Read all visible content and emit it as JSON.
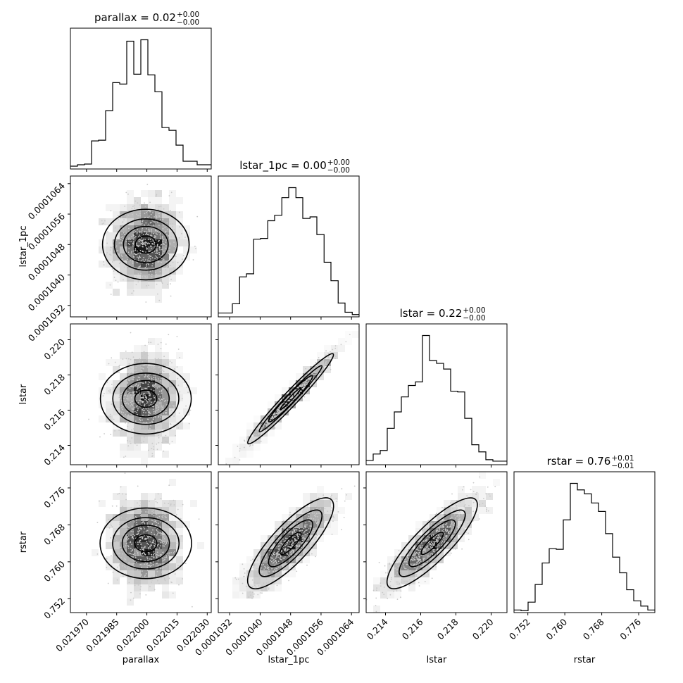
{
  "chart_data": {
    "type": "corner",
    "parameters": [
      {
        "key": "parallax",
        "label": "parallax",
        "range": [
          0.021962,
          0.022032
        ],
        "ticks": [
          "0.021970",
          "0.021985",
          "0.022000",
          "0.022015",
          "0.022030"
        ],
        "tick_values": [
          0.02197,
          0.021985,
          0.022,
          0.022015,
          0.02203
        ],
        "title_main": "parallax = 0.02",
        "title_sup": "+0.00",
        "title_sub": "−0.00",
        "hist_edges": [
          0.021962,
          0.0219655,
          0.021969,
          0.0219725,
          0.021976,
          0.0219795,
          0.021983,
          0.0219865,
          0.02199,
          0.0219935,
          0.021997,
          0.0220005,
          0.022004,
          0.0220075,
          0.022011,
          0.0220145,
          0.022018,
          0.0220215,
          0.022025,
          0.0220285,
          0.022032
        ],
        "hist_counts": [
          4,
          6,
          7,
          40,
          41,
          83,
          123,
          121,
          182,
          135,
          184,
          134,
          110,
          59,
          55,
          34,
          11,
          11,
          6,
          6
        ]
      },
      {
        "key": "lstar_1pc",
        "label": "lstar_1pc",
        "range": [
          0.0001029,
          0.0001066
        ],
        "ticks": [
          "0.0001032",
          "0.0001040",
          "0.0001048",
          "0.0001056",
          "0.0001064"
        ],
        "tick_values": [
          0.0001032,
          0.000104,
          0.0001048,
          0.0001056,
          0.0001064
        ],
        "title_main": "lstar_1pc = 0.00",
        "title_sup": "+0.00",
        "title_sub": "−0.00",
        "hist_edges": [
          0.0001029,
          0.00010309,
          0.00010327,
          0.00010346,
          0.00010364,
          0.00010383,
          0.00010401,
          0.0001042,
          0.00010438,
          0.00010457,
          0.00010475,
          0.00010494,
          0.00010512,
          0.00010531,
          0.00010549,
          0.00010568,
          0.00010586,
          0.00010605,
          0.00010623,
          0.00010642,
          0.0001066
        ],
        "hist_counts": [
          5,
          5,
          17,
          52,
          56,
          101,
          102,
          125,
          132,
          155,
          168,
          155,
          128,
          130,
          107,
          71,
          47,
          18,
          6,
          3
        ]
      },
      {
        "key": "lstar",
        "label": "lstar",
        "range": [
          0.2129,
          0.2209
        ],
        "ticks": [
          "0.214",
          "0.216",
          "0.218",
          "0.220"
        ],
        "tick_values": [
          0.214,
          0.216,
          0.218,
          0.22
        ],
        "title_main": "lstar = 0.22",
        "title_sup": "+0.00",
        "title_sub": "−0.00",
        "hist_edges": [
          0.2129,
          0.2133,
          0.2137,
          0.2141,
          0.2145,
          0.2149,
          0.2153,
          0.2157,
          0.2161,
          0.2165,
          0.2169,
          0.2173,
          0.2177,
          0.2181,
          0.2185,
          0.2189,
          0.2193,
          0.2197,
          0.2201,
          0.2205,
          0.2209
        ],
        "hist_counts": [
          6,
          15,
          20,
          51,
          74,
          95,
          111,
          116,
          181,
          146,
          142,
          134,
          103,
          102,
          65,
          28,
          18,
          7,
          5,
          5
        ]
      },
      {
        "key": "rstar",
        "label": "rstar",
        "range": [
          0.749,
          0.7795
        ],
        "ticks": [
          "0.752",
          "0.760",
          "0.768",
          "0.776"
        ],
        "tick_values": [
          0.752,
          0.76,
          0.768,
          0.776
        ],
        "title_main": "rstar = 0.76",
        "title_sup": "+0.01",
        "title_sub": "−0.01",
        "hist_edges": [
          0.749,
          0.750525,
          0.75205,
          0.753575,
          0.7551,
          0.756625,
          0.75815,
          0.759675,
          0.7612,
          0.762725,
          0.76425,
          0.765775,
          0.7673,
          0.768825,
          0.77035,
          0.771875,
          0.7734,
          0.774925,
          0.77645,
          0.777975,
          0.7795
        ],
        "hist_counts": [
          4,
          3,
          16,
          43,
          76,
          98,
          97,
          142,
          198,
          188,
          182,
          168,
          155,
          121,
          85,
          61,
          35,
          18,
          10,
          4
        ]
      }
    ],
    "pairs": [
      {
        "x": "parallax",
        "y": "lstar_1pc",
        "correlation": 0.0
      },
      {
        "x": "parallax",
        "y": "lstar",
        "correlation": 0.0
      },
      {
        "x": "parallax",
        "y": "rstar",
        "correlation": 0.0
      },
      {
        "x": "lstar_1pc",
        "y": "lstar",
        "correlation": 0.98
      },
      {
        "x": "lstar_1pc",
        "y": "rstar",
        "correlation": 0.83
      },
      {
        "x": "lstar",
        "y": "rstar",
        "correlation": 0.86
      }
    ],
    "grid": false,
    "colors": {
      "line": "#000000",
      "density": "#000000",
      "points": "#cccccc"
    }
  }
}
